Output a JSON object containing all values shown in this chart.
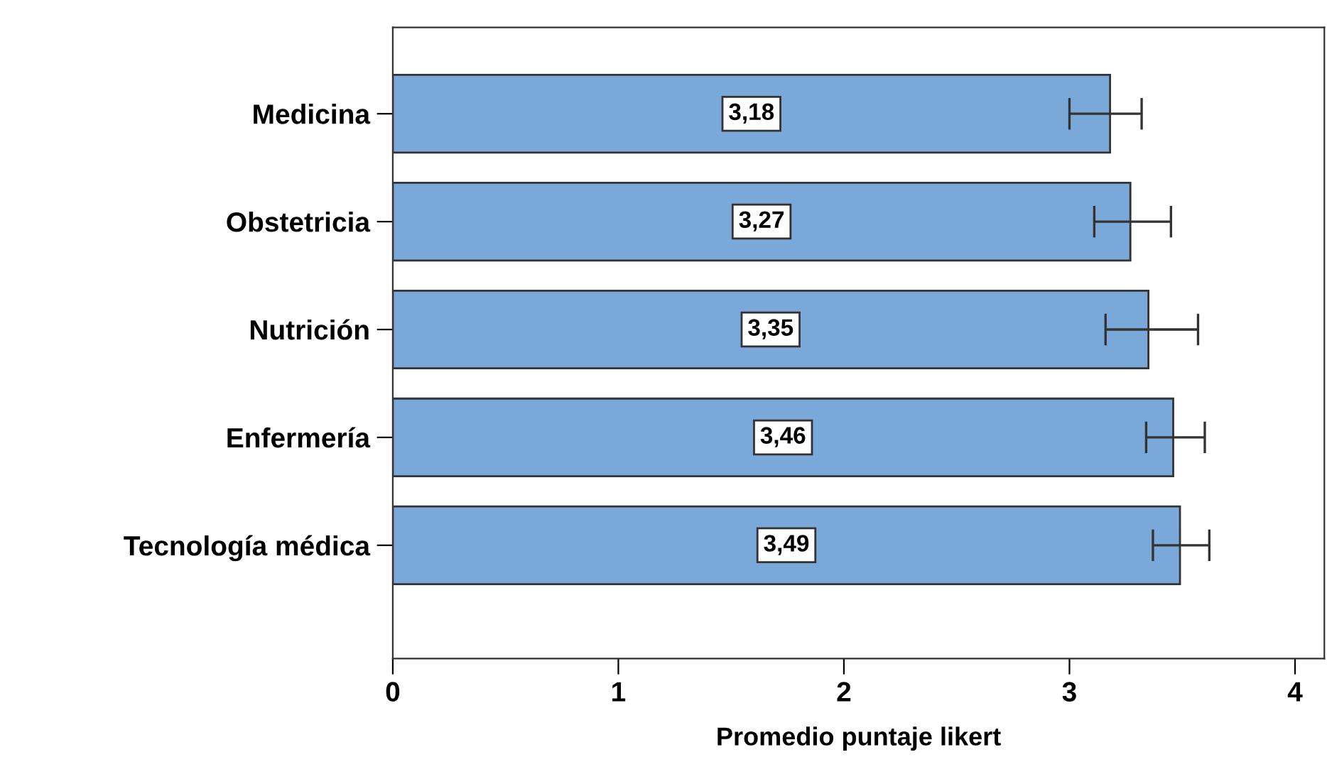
{
  "chart_data": {
    "type": "bar",
    "orientation": "horizontal",
    "xlabel": "Promedio puntaje likert",
    "categories": [
      "Medicina",
      "Obstetricia",
      "Nutrición",
      "Enfermería",
      "Tecnología médica"
    ],
    "values": [
      3.18,
      3.27,
      3.35,
      3.46,
      3.49
    ],
    "value_labels": [
      "3,18",
      "3,27",
      "3,35",
      "3,46",
      "3,49"
    ],
    "errors": [
      [
        3.0,
        3.32
      ],
      [
        3.11,
        3.45
      ],
      [
        3.16,
        3.57
      ],
      [
        3.34,
        3.6
      ],
      [
        3.37,
        3.62
      ]
    ],
    "color": "#7aa8d8",
    "xlim": [
      0,
      4.13
    ],
    "xticks": [
      0,
      1,
      2,
      3,
      4
    ],
    "grid": false
  }
}
